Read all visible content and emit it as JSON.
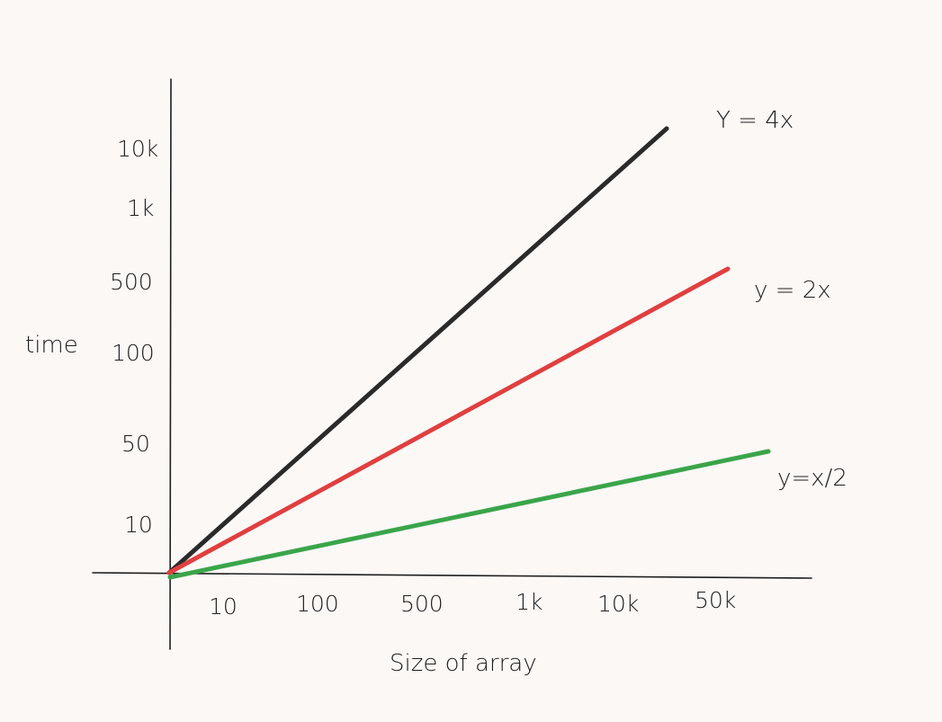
{
  "diagram": {
    "y_axis_label": "time",
    "x_axis_label": "Size of array",
    "y_ticks": [
      "10",
      "50",
      "100",
      "500",
      "1k",
      "10k"
    ],
    "x_ticks": [
      "10",
      "100",
      "500",
      "1k",
      "10k",
      "50k"
    ],
    "lines": [
      {
        "label": "Y = 4x",
        "color": "#2a2a2a"
      },
      {
        "label": "y = 2x",
        "color": "#e03f3f"
      },
      {
        "label": "y=x/2",
        "color": "#3aa54a"
      }
    ]
  }
}
